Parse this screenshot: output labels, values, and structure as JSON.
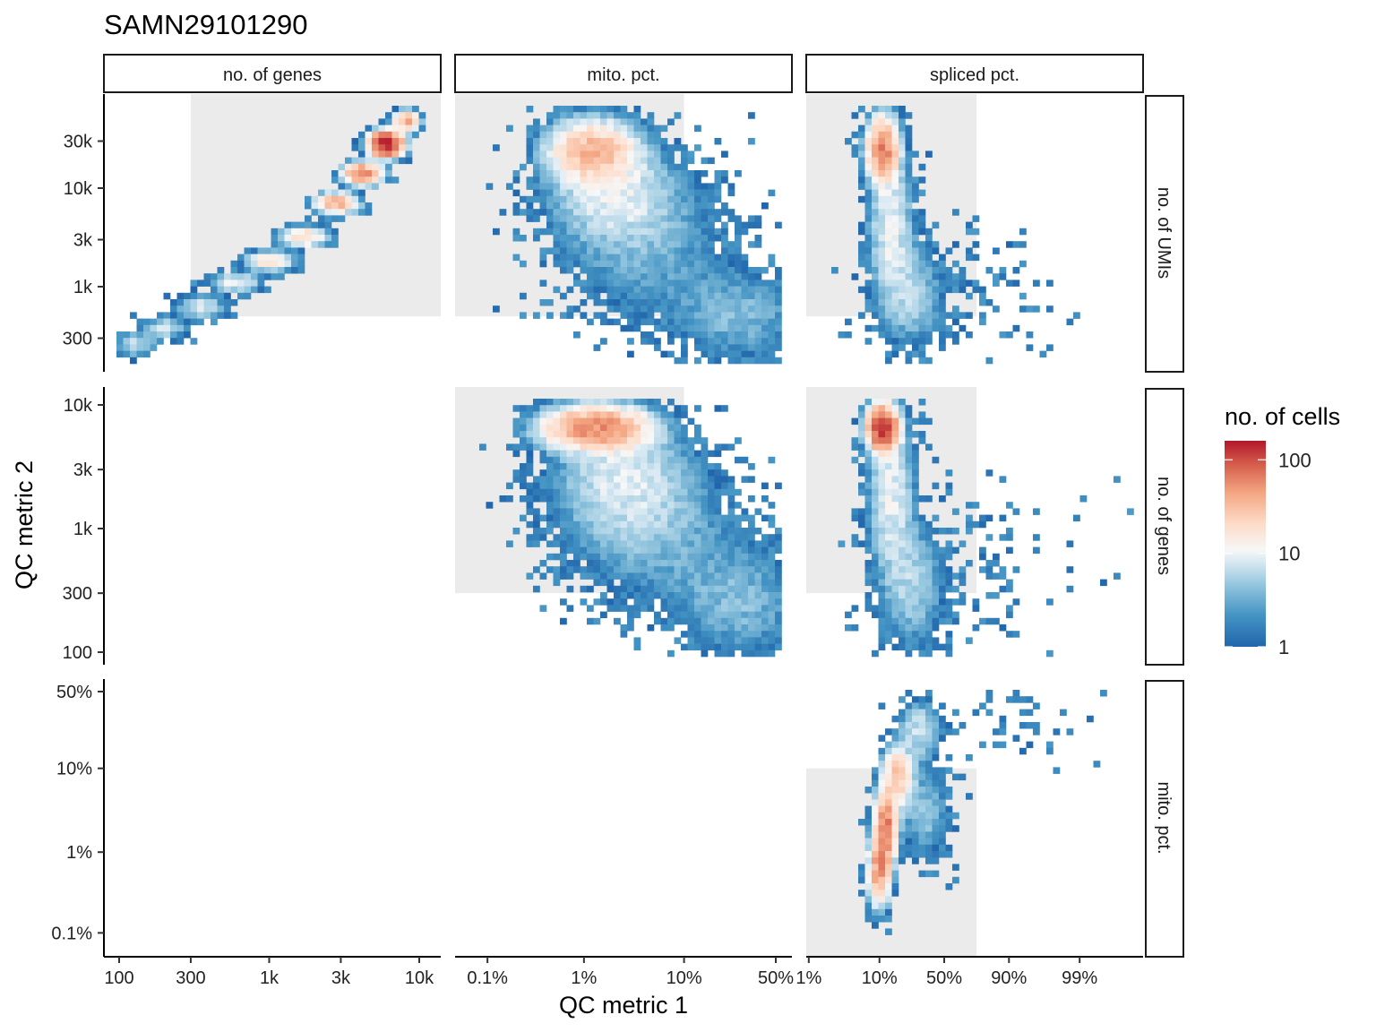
{
  "chart_data": {
    "type": "heatmap",
    "title": "SAMN29101290",
    "xlabel": "QC metric 1",
    "ylabel": "QC metric 2",
    "column_strips": [
      "no. of genes",
      "mito. pct.",
      "spliced pct."
    ],
    "row_strips": [
      "no. of UMIs",
      "no. of genes",
      "mito. pct."
    ],
    "x_axes": [
      {
        "metric": "no. of genes",
        "scale": "log10",
        "ticks": [
          100,
          300,
          1000,
          3000,
          10000
        ],
        "tick_labels": [
          "100",
          "300",
          "1k",
          "3k",
          "10k"
        ]
      },
      {
        "metric": "mito. pct.",
        "scale": "logit",
        "ticks": [
          0.001,
          0.01,
          0.1,
          0.5
        ],
        "tick_labels": [
          "0.1%",
          "1%",
          "10%",
          "50%"
        ]
      },
      {
        "metric": "spliced pct.",
        "scale": "logit",
        "ticks": [
          0.01,
          0.1,
          0.5,
          0.9,
          0.99
        ],
        "tick_labels": [
          "1%",
          "10%",
          "50%",
          "90%",
          "99%"
        ]
      }
    ],
    "y_axes": [
      {
        "metric": "no. of UMIs",
        "scale": "log10",
        "ticks": [
          300,
          1000,
          3000,
          10000,
          30000
        ],
        "tick_labels": [
          "300",
          "1k",
          "3k",
          "10k",
          "30k"
        ]
      },
      {
        "metric": "no. of genes",
        "scale": "log10",
        "ticks": [
          100,
          300,
          1000,
          3000,
          10000
        ],
        "tick_labels": [
          "100",
          "300",
          "1k",
          "3k",
          "10k"
        ]
      },
      {
        "metric": "mito. pct.",
        "scale": "logit",
        "ticks": [
          0.001,
          0.01,
          0.1,
          0.5
        ],
        "tick_labels": [
          "0.1%",
          "1%",
          "10%",
          "50%"
        ]
      }
    ],
    "legend": {
      "title": "no. of cells",
      "scale": "log10",
      "range": [
        1,
        160
      ],
      "ticks": [
        1,
        10,
        100
      ],
      "tick_labels": [
        "1",
        "10",
        "100"
      ],
      "position": "right"
    },
    "colors": {
      "low": "#2166AC",
      "mid": "#F7F7F7",
      "high": "#B2182B",
      "filter_region": "#EBEBEB"
    },
    "panels": [
      {
        "row": 0,
        "col": 0,
        "x": "no. of genes",
        "y": "no. of UMIs",
        "filter_region": {
          "x": [
            300,
            20000
          ],
          "y": [
            500,
            100000
          ]
        },
        "density_components": [
          {
            "x": 130,
            "y": 260,
            "sx": 0.08,
            "sy": 0.08,
            "peak": 6
          },
          {
            "x": 200,
            "y": 380,
            "sx": 0.08,
            "sy": 0.07,
            "peak": 7
          },
          {
            "x": 350,
            "y": 620,
            "sx": 0.09,
            "sy": 0.07,
            "peak": 8
          },
          {
            "x": 600,
            "y": 1100,
            "sx": 0.09,
            "sy": 0.06,
            "peak": 11
          },
          {
            "x": 1000,
            "y": 1800,
            "sx": 0.09,
            "sy": 0.06,
            "peak": 16
          },
          {
            "x": 1700,
            "y": 3200,
            "sx": 0.09,
            "sy": 0.06,
            "peak": 22
          },
          {
            "x": 2800,
            "y": 7000,
            "sx": 0.08,
            "sy": 0.06,
            "peak": 35
          },
          {
            "x": 4200,
            "y": 14000,
            "sx": 0.07,
            "sy": 0.06,
            "peak": 60
          },
          {
            "x": 6000,
            "y": 28000,
            "sx": 0.06,
            "sy": 0.07,
            "peak": 140
          },
          {
            "x": 8200,
            "y": 48000,
            "sx": 0.05,
            "sy": 0.06,
            "peak": 35
          }
        ]
      },
      {
        "row": 0,
        "col": 1,
        "x": "mito. pct.",
        "y": "no. of UMIs",
        "filter_region": {
          "x": [
            0.0001,
            0.1
          ],
          "y": [
            500,
            100000
          ]
        },
        "density_components": [
          {
            "x": 0.012,
            "y": 24000,
            "sx": 0.6,
            "sy": 0.18,
            "peak": 30
          },
          {
            "x": 0.02,
            "y": 9000,
            "sx": 0.9,
            "sy": 0.3,
            "peak": 8
          },
          {
            "x": 0.04,
            "y": 2500,
            "sx": 1.3,
            "sy": 0.45,
            "peak": 3
          },
          {
            "x": 0.3,
            "y": 500,
            "sx": 1.0,
            "sy": 0.3,
            "peak": 3.5
          }
        ]
      },
      {
        "row": 0,
        "col": 2,
        "x": "spliced pct.",
        "y": "no. of UMIs",
        "filter_region": {
          "x": [
            0.0001,
            0.75
          ],
          "y": [
            500,
            100000
          ]
        },
        "density_components": [
          {
            "x": 0.11,
            "y": 25000,
            "sx": 0.3,
            "sy": 0.18,
            "peak": 55
          },
          {
            "x": 0.14,
            "y": 4000,
            "sx": 0.45,
            "sy": 0.45,
            "peak": 9
          },
          {
            "x": 0.25,
            "y": 800,
            "sx": 0.6,
            "sy": 0.3,
            "peak": 5
          },
          {
            "x": 0.7,
            "y": 800,
            "sx": 1.8,
            "sy": 0.4,
            "peak": 0.5
          }
        ]
      },
      {
        "row": 1,
        "col": 1,
        "x": "mito. pct.",
        "y": "no. of genes",
        "filter_region": {
          "x": [
            0.0001,
            0.1
          ],
          "y": [
            300,
            100000
          ]
        },
        "density_components": [
          {
            "x": 0.013,
            "y": 6500,
            "sx": 0.7,
            "sy": 0.1,
            "peak": 50
          },
          {
            "x": 0.025,
            "y": 2500,
            "sx": 1.0,
            "sy": 0.3,
            "peak": 7
          },
          {
            "x": 0.05,
            "y": 900,
            "sx": 1.3,
            "sy": 0.35,
            "peak": 3
          },
          {
            "x": 0.3,
            "y": 250,
            "sx": 1.0,
            "sy": 0.3,
            "peak": 3.5
          }
        ]
      },
      {
        "row": 1,
        "col": 2,
        "x": "spliced pct.",
        "y": "no. of genes",
        "filter_region": {
          "x": [
            0.0001,
            0.75
          ],
          "y": [
            300,
            100000
          ]
        },
        "density_components": [
          {
            "x": 0.11,
            "y": 6500,
            "sx": 0.28,
            "sy": 0.1,
            "peak": 110
          },
          {
            "x": 0.14,
            "y": 2000,
            "sx": 0.45,
            "sy": 0.4,
            "peak": 9
          },
          {
            "x": 0.25,
            "y": 350,
            "sx": 0.6,
            "sy": 0.3,
            "peak": 5
          },
          {
            "x": 0.7,
            "y": 400,
            "sx": 1.8,
            "sy": 0.4,
            "peak": 0.5
          }
        ]
      },
      {
        "row": 2,
        "col": 2,
        "x": "spliced pct.",
        "y": "mito. pct.",
        "filter_region": {
          "x": [
            0.0001,
            0.75
          ],
          "y": [
            0.0001,
            0.1
          ]
        },
        "density_components": [
          {
            "x": 0.1,
            "y": 0.006,
            "sx": 0.22,
            "sy": 0.55,
            "peak": 45
          },
          {
            "x": 0.12,
            "y": 0.02,
            "sx": 0.22,
            "sy": 0.55,
            "peak": 60
          },
          {
            "x": 0.17,
            "y": 0.08,
            "sx": 0.3,
            "sy": 0.5,
            "peak": 25
          },
          {
            "x": 0.3,
            "y": 0.25,
            "sx": 0.4,
            "sy": 0.5,
            "peak": 7
          },
          {
            "x": 0.35,
            "y": 0.03,
            "sx": 0.5,
            "sy": 0.8,
            "peak": 4
          },
          {
            "x": 0.9,
            "y": 0.3,
            "sx": 1.4,
            "sy": 0.6,
            "peak": 0.6
          }
        ]
      }
    ]
  }
}
